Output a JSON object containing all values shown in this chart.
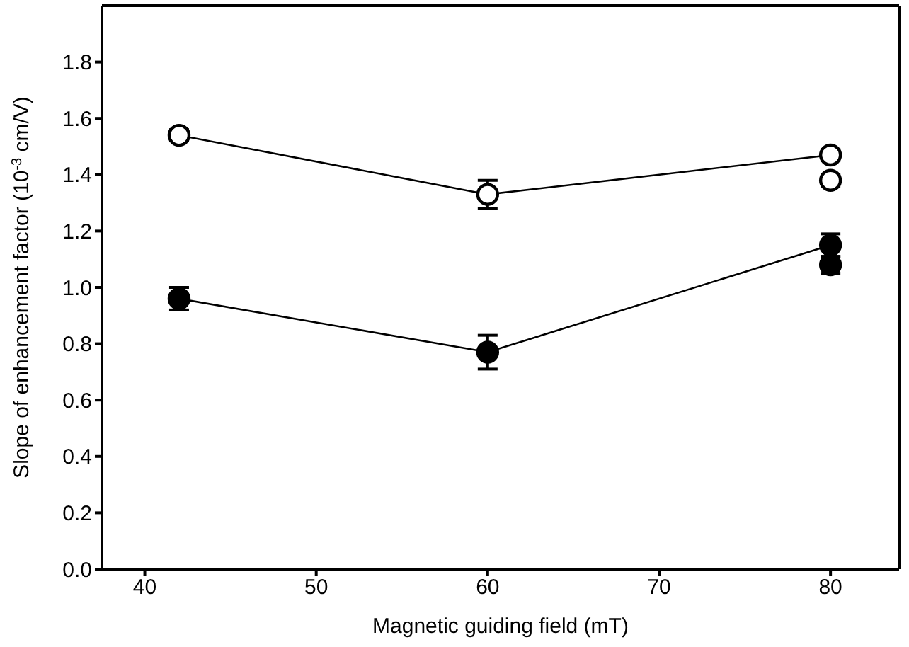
{
  "chart_data": {
    "type": "scatter",
    "xlabel": "Magnetic guiding field (mT)",
    "ylabel": "Slope of enhancement factor (10$^{-3}$ cm/V)",
    "xlim": [
      37.5,
      84
    ],
    "xticks": [
      40,
      50,
      60,
      70,
      80
    ],
    "ylim": [
      0,
      2.0
    ],
    "yticks": [
      {
        "value": 0,
        "label": "0.0"
      },
      0.2,
      0.4,
      0.6,
      0.8,
      {
        "value": 1,
        "label": "1.0"
      },
      1.2,
      1.4,
      1.6,
      1.8
    ],
    "marker": "circle",
    "series": [
      {
        "type": "line",
        "color": "#ffffff",
        "x": [
          42,
          60,
          80
        ],
        "values": [
          1.54,
          1.33,
          1.47
        ],
        "errors": [
          0.02,
          0.05,
          0.02
        ]
      },
      {
        "color": "#ffffff",
        "x": [
          80
        ],
        "values": [
          1.38
        ],
        "errors": [
          0.02
        ]
      },
      {
        "type": "line",
        "color": "#000000",
        "x": [
          42,
          60,
          80
        ],
        "values": [
          0.96,
          0.77,
          1.15
        ],
        "errors": [
          0.04,
          0.06,
          0.04
        ]
      },
      {
        "color": "#000000",
        "x": [
          80
        ],
        "values": [
          1.08
        ],
        "errors": [
          0.03
        ]
      }
    ]
  }
}
